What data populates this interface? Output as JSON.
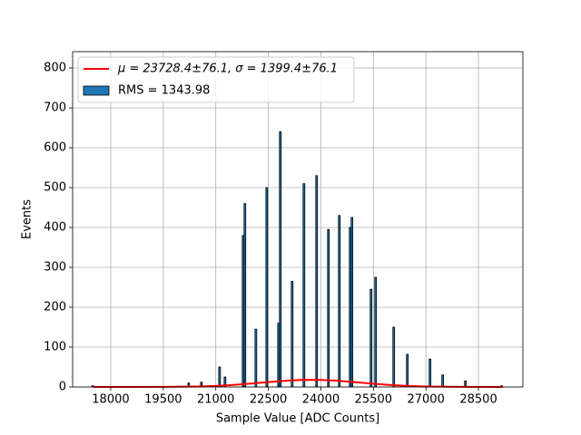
{
  "chart_data": {
    "type": "histogram",
    "xlabel": "Sample Value [ADC Counts]",
    "ylabel": "Events",
    "name": "RMS = 1343.98",
    "color": "#1f77b4",
    "edgecolor": "#000000",
    "bins": [
      17457,
      17507,
      20202,
      20252,
      20565,
      20615,
      21083,
      21133,
      21238,
      21288,
      21756,
      21806,
      21856,
      22119,
      22169,
      22430,
      22480,
      22767,
      22817,
      22867,
      23155,
      23205,
      23492,
      23542,
      23854,
      23904,
      24191,
      24241,
      24502,
      24552,
      24813,
      24863,
      24913,
      25408,
      25458,
      25538,
      25588,
      26056,
      26106,
      26444,
      26494,
      27092,
      27142,
      27454,
      27504,
      28102,
      28152,
      29138,
      29188
    ],
    "counts": [
      3,
      0,
      10,
      0,
      12,
      0,
      50,
      0,
      25,
      0,
      380,
      460,
      0,
      145,
      0,
      500,
      0,
      160,
      640,
      0,
      265,
      0,
      510,
      0,
      530,
      0,
      395,
      0,
      430,
      0,
      400,
      425,
      0,
      245,
      0,
      275,
      0,
      150,
      0,
      82,
      0,
      70,
      0,
      30,
      0,
      15,
      0,
      3
    ],
    "overlays": [
      {
        "type": "line",
        "name": "μ = 23728.4±76.1, σ = 1399.4±76.1",
        "color": "#ff0000",
        "x": [
          17500,
          18500,
          19500,
          20500,
          21000,
          21500,
          22000,
          22500,
          23000,
          23500,
          24000,
          24500,
          25000,
          25500,
          26000,
          26500,
          27000,
          28000,
          29200
        ],
        "values": [
          0,
          0.016,
          0.19,
          1.26,
          2.69,
          5.06,
          8.39,
          12.26,
          15.7,
          17.8,
          17.7,
          15.5,
          11.9,
          8.1,
          4.8,
          2.5,
          1.17,
          0.17,
          0
        ]
      }
    ],
    "xlim": [
      16912,
      29769
    ],
    "ylim": [
      0,
      841
    ],
    "xticks": [
      18000,
      19500,
      21000,
      22500,
      24000,
      25500,
      27000,
      28500
    ],
    "yticks": [
      0,
      100,
      200,
      300,
      400,
      500,
      600,
      700,
      800
    ],
    "grid": true,
    "legend": "upper left"
  }
}
